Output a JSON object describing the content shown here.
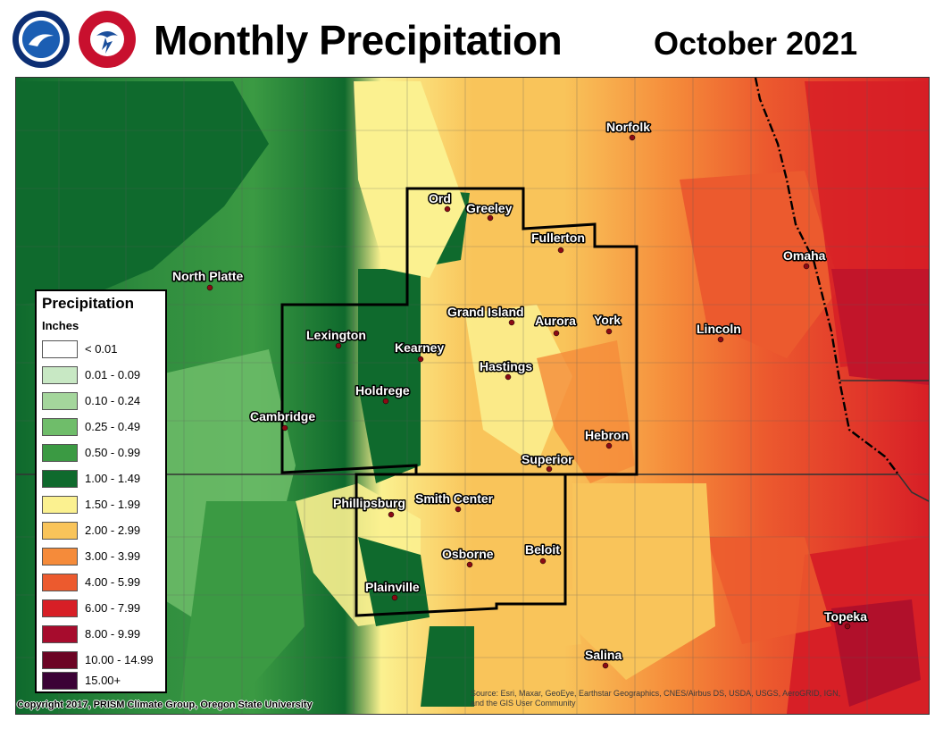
{
  "header": {
    "title": "Monthly Precipitation",
    "period": "October 2021",
    "logos": [
      "noaa-logo",
      "national-weather-service-logo"
    ]
  },
  "legend": {
    "title": "Precipitation",
    "units": "Inches",
    "classes": [
      {
        "label": "< 0.01",
        "color": "#ffffff"
      },
      {
        "label": "0.01 - 0.09",
        "color": "#c8e8c4"
      },
      {
        "label": "0.10 - 0.24",
        "color": "#a4d69c"
      },
      {
        "label": "0.25 - 0.49",
        "color": "#6fbd6a"
      },
      {
        "label": "0.50 - 0.99",
        "color": "#3b9a43"
      },
      {
        "label": "1.00 - 1.49",
        "color": "#0f6a2d"
      },
      {
        "label": "1.50 - 1.99",
        "color": "#fbf190"
      },
      {
        "label": "2.00 - 2.99",
        "color": "#f9c45a"
      },
      {
        "label": "3.00 - 3.99",
        "color": "#f58b3a"
      },
      {
        "label": "4.00 - 5.99",
        "color": "#ec5a2e"
      },
      {
        "label": "6.00 - 7.99",
        "color": "#d71f26"
      },
      {
        "label": "8.00 - 9.99",
        "color": "#a70c2d"
      },
      {
        "label": "10.00 - 14.99",
        "color": "#6c0424"
      },
      {
        "label": "15.00+",
        "color": "#3b0236"
      }
    ]
  },
  "cities": [
    {
      "name": "Norfolk"
    },
    {
      "name": "Ord"
    },
    {
      "name": "Greeley"
    },
    {
      "name": "Fullerton"
    },
    {
      "name": "Omaha"
    },
    {
      "name": "North Platte"
    },
    {
      "name": "Grand Island"
    },
    {
      "name": "Aurora"
    },
    {
      "name": "York"
    },
    {
      "name": "Lincoln"
    },
    {
      "name": "Lexington"
    },
    {
      "name": "Kearney"
    },
    {
      "name": "Hastings"
    },
    {
      "name": "Holdrege"
    },
    {
      "name": "Cambridge"
    },
    {
      "name": "Hebron"
    },
    {
      "name": "Superior"
    },
    {
      "name": "Phillipsburg"
    },
    {
      "name": "Smith Center"
    },
    {
      "name": "Beloit"
    },
    {
      "name": "Osborne"
    },
    {
      "name": "Plainville"
    },
    {
      "name": "Topeka"
    },
    {
      "name": "Salina"
    }
  ],
  "credits": {
    "copyright": "Copyright 2017, PRISM Climate Group, Oregon State University",
    "attribution_line1": "Source: Esri, Maxar, GeoEye, Earthstar Geographics, CNES/Airbus DS, USDA, USGS, AeroGRID, IGN,",
    "attribution_line2": "and the GIS User Community"
  }
}
